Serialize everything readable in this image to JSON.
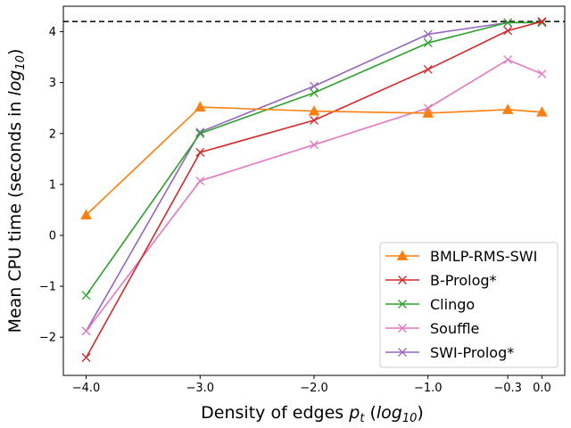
{
  "chart_data": {
    "type": "line",
    "xlabel_main": "Density of edges ",
    "xlabel_var": "p",
    "xlabel_sub": "t",
    "xlabel_paren_open": " (",
    "xlabel_log": "log",
    "xlabel_log_sub": "10",
    "xlabel_paren_close": ")",
    "ylabel_main": "Mean CPU time (seconds in ",
    "ylabel_log": "log",
    "ylabel_log_sub": "10",
    "ylabel_paren_close": ")",
    "x_ticks": [
      {
        "value": -4.0,
        "label": "−4.0"
      },
      {
        "value": -3.0,
        "label": "−3.0"
      },
      {
        "value": -2.0,
        "label": "−2.0"
      },
      {
        "value": -1.0,
        "label": "−1.0"
      },
      {
        "value": -0.3,
        "label": "−0.3"
      },
      {
        "value": 0.0,
        "label": "0.0"
      }
    ],
    "y_ticks": [
      {
        "value": -2,
        "label": "−2"
      },
      {
        "value": -1,
        "label": "−1"
      },
      {
        "value": 0,
        "label": "0"
      },
      {
        "value": 1,
        "label": "1"
      },
      {
        "value": 2,
        "label": "2"
      },
      {
        "value": 3,
        "label": "3"
      },
      {
        "value": 4,
        "label": "4"
      }
    ],
    "xlim": [
      -4.2,
      0.2
    ],
    "ylim": [
      -2.75,
      4.5
    ],
    "timeout_line": 4.2,
    "x": [
      -4.0,
      -3.0,
      -2.0,
      -1.0,
      -0.3,
      0.0
    ],
    "series": [
      {
        "name": "BMLP-RMS-SWI",
        "color": "#ff7f0e",
        "marker": "triangle",
        "values": [
          0.4,
          2.52,
          2.44,
          2.4,
          2.47,
          2.42
        ]
      },
      {
        "name": "B-Prolog*",
        "color": "#d62728",
        "marker": "x",
        "values": [
          -2.4,
          1.63,
          2.26,
          3.26,
          4.02,
          4.2
        ]
      },
      {
        "name": "Clingo",
        "color": "#2ca02c",
        "marker": "x",
        "values": [
          -1.18,
          2.0,
          2.8,
          3.78,
          4.18,
          4.18
        ]
      },
      {
        "name": "Souffle",
        "color": "#e377c2",
        "marker": "x",
        "values": [
          -1.88,
          1.07,
          1.78,
          2.5,
          3.45,
          3.17
        ]
      },
      {
        "name": "SWI-Prolog*",
        "color": "#9467bd",
        "marker": "x",
        "values": [
          -1.88,
          2.03,
          2.93,
          3.95,
          4.18,
          4.18
        ]
      }
    ],
    "legend_position": "lower-right",
    "grid": false
  }
}
